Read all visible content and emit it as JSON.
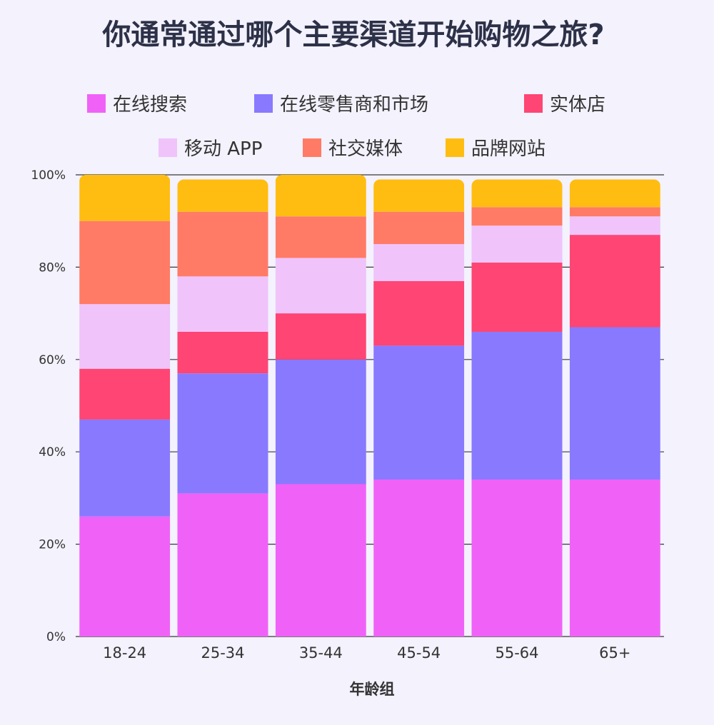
{
  "chart_data": {
    "type": "bar",
    "stacked": true,
    "title": "你通常通过哪个主要渠道开始购物之旅?",
    "xlabel": "年龄组",
    "ylabel": "",
    "categories": [
      "18-24",
      "25-34",
      "35-44",
      "45-54",
      "55-64",
      "65+"
    ],
    "ylim": [
      0,
      100
    ],
    "yticks": [
      0,
      20,
      40,
      60,
      80,
      100
    ],
    "ytick_suffix": "%",
    "grid": true,
    "legend_position": "top",
    "series": [
      {
        "name": "在线搜索",
        "color": "#f062f7",
        "values": [
          26,
          31,
          33,
          34,
          34,
          34
        ]
      },
      {
        "name": "在线零售商和市场",
        "color": "#8979fe",
        "values": [
          21,
          26,
          27,
          29,
          32,
          33
        ]
      },
      {
        "name": "实体店",
        "color": "#fe4574",
        "values": [
          11,
          9,
          10,
          14,
          15,
          20
        ]
      },
      {
        "name": "移动 APP",
        "color": "#f0c3fa",
        "values": [
          14,
          12,
          12,
          8,
          8,
          4
        ]
      },
      {
        "name": "社交媒体",
        "color": "#ff7b66",
        "values": [
          18,
          14,
          9,
          7,
          4,
          2
        ]
      },
      {
        "name": "品牌网站",
        "color": "#ffbd12",
        "values": [
          10,
          7,
          9,
          7,
          6,
          6
        ]
      }
    ]
  }
}
